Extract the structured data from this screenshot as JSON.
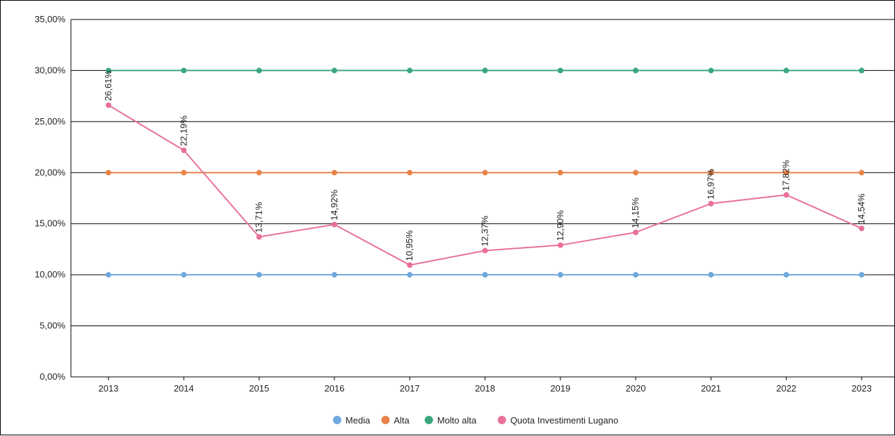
{
  "chart_data": {
    "type": "line",
    "categories": [
      "2013",
      "2014",
      "2015",
      "2016",
      "2017",
      "2018",
      "2019",
      "2020",
      "2021",
      "2022",
      "2023"
    ],
    "ylim": [
      0,
      35
    ],
    "yticks": [
      0,
      5,
      10,
      15,
      20,
      25,
      30,
      35
    ],
    "ytick_labels": [
      "0,00%",
      "5,00%",
      "10,00%",
      "15,00%",
      "20,00%",
      "25,00%",
      "30,00%",
      "35,00%"
    ],
    "grid": true,
    "legend_position": "bottom",
    "series": [
      {
        "name": "Media",
        "color": "#6fa8dc",
        "values": [
          10,
          10,
          10,
          10,
          10,
          10,
          10,
          10,
          10,
          10,
          10
        ]
      },
      {
        "name": "Alta",
        "color": "#e8844a",
        "values": [
          20,
          20,
          20,
          20,
          20,
          20,
          20,
          20,
          20,
          20,
          20
        ]
      },
      {
        "name": "Molto alta",
        "color": "#3aa77f",
        "values": [
          30,
          30,
          30,
          30,
          30,
          30,
          30,
          30,
          30,
          30,
          30
        ]
      },
      {
        "name": "Quota Investimenti Lugano",
        "color": "#e8709a",
        "values": [
          26.61,
          22.19,
          13.71,
          14.92,
          10.95,
          12.37,
          12.9,
          14.15,
          16.97,
          17.82,
          14.54
        ],
        "labels": [
          "26,61%",
          "22,19%",
          "13,71%",
          "14,92%",
          "10,95%",
          "12,37%",
          "12,90%",
          "14,15%",
          "16,97%",
          "17,82%",
          "14,54%"
        ]
      }
    ]
  }
}
